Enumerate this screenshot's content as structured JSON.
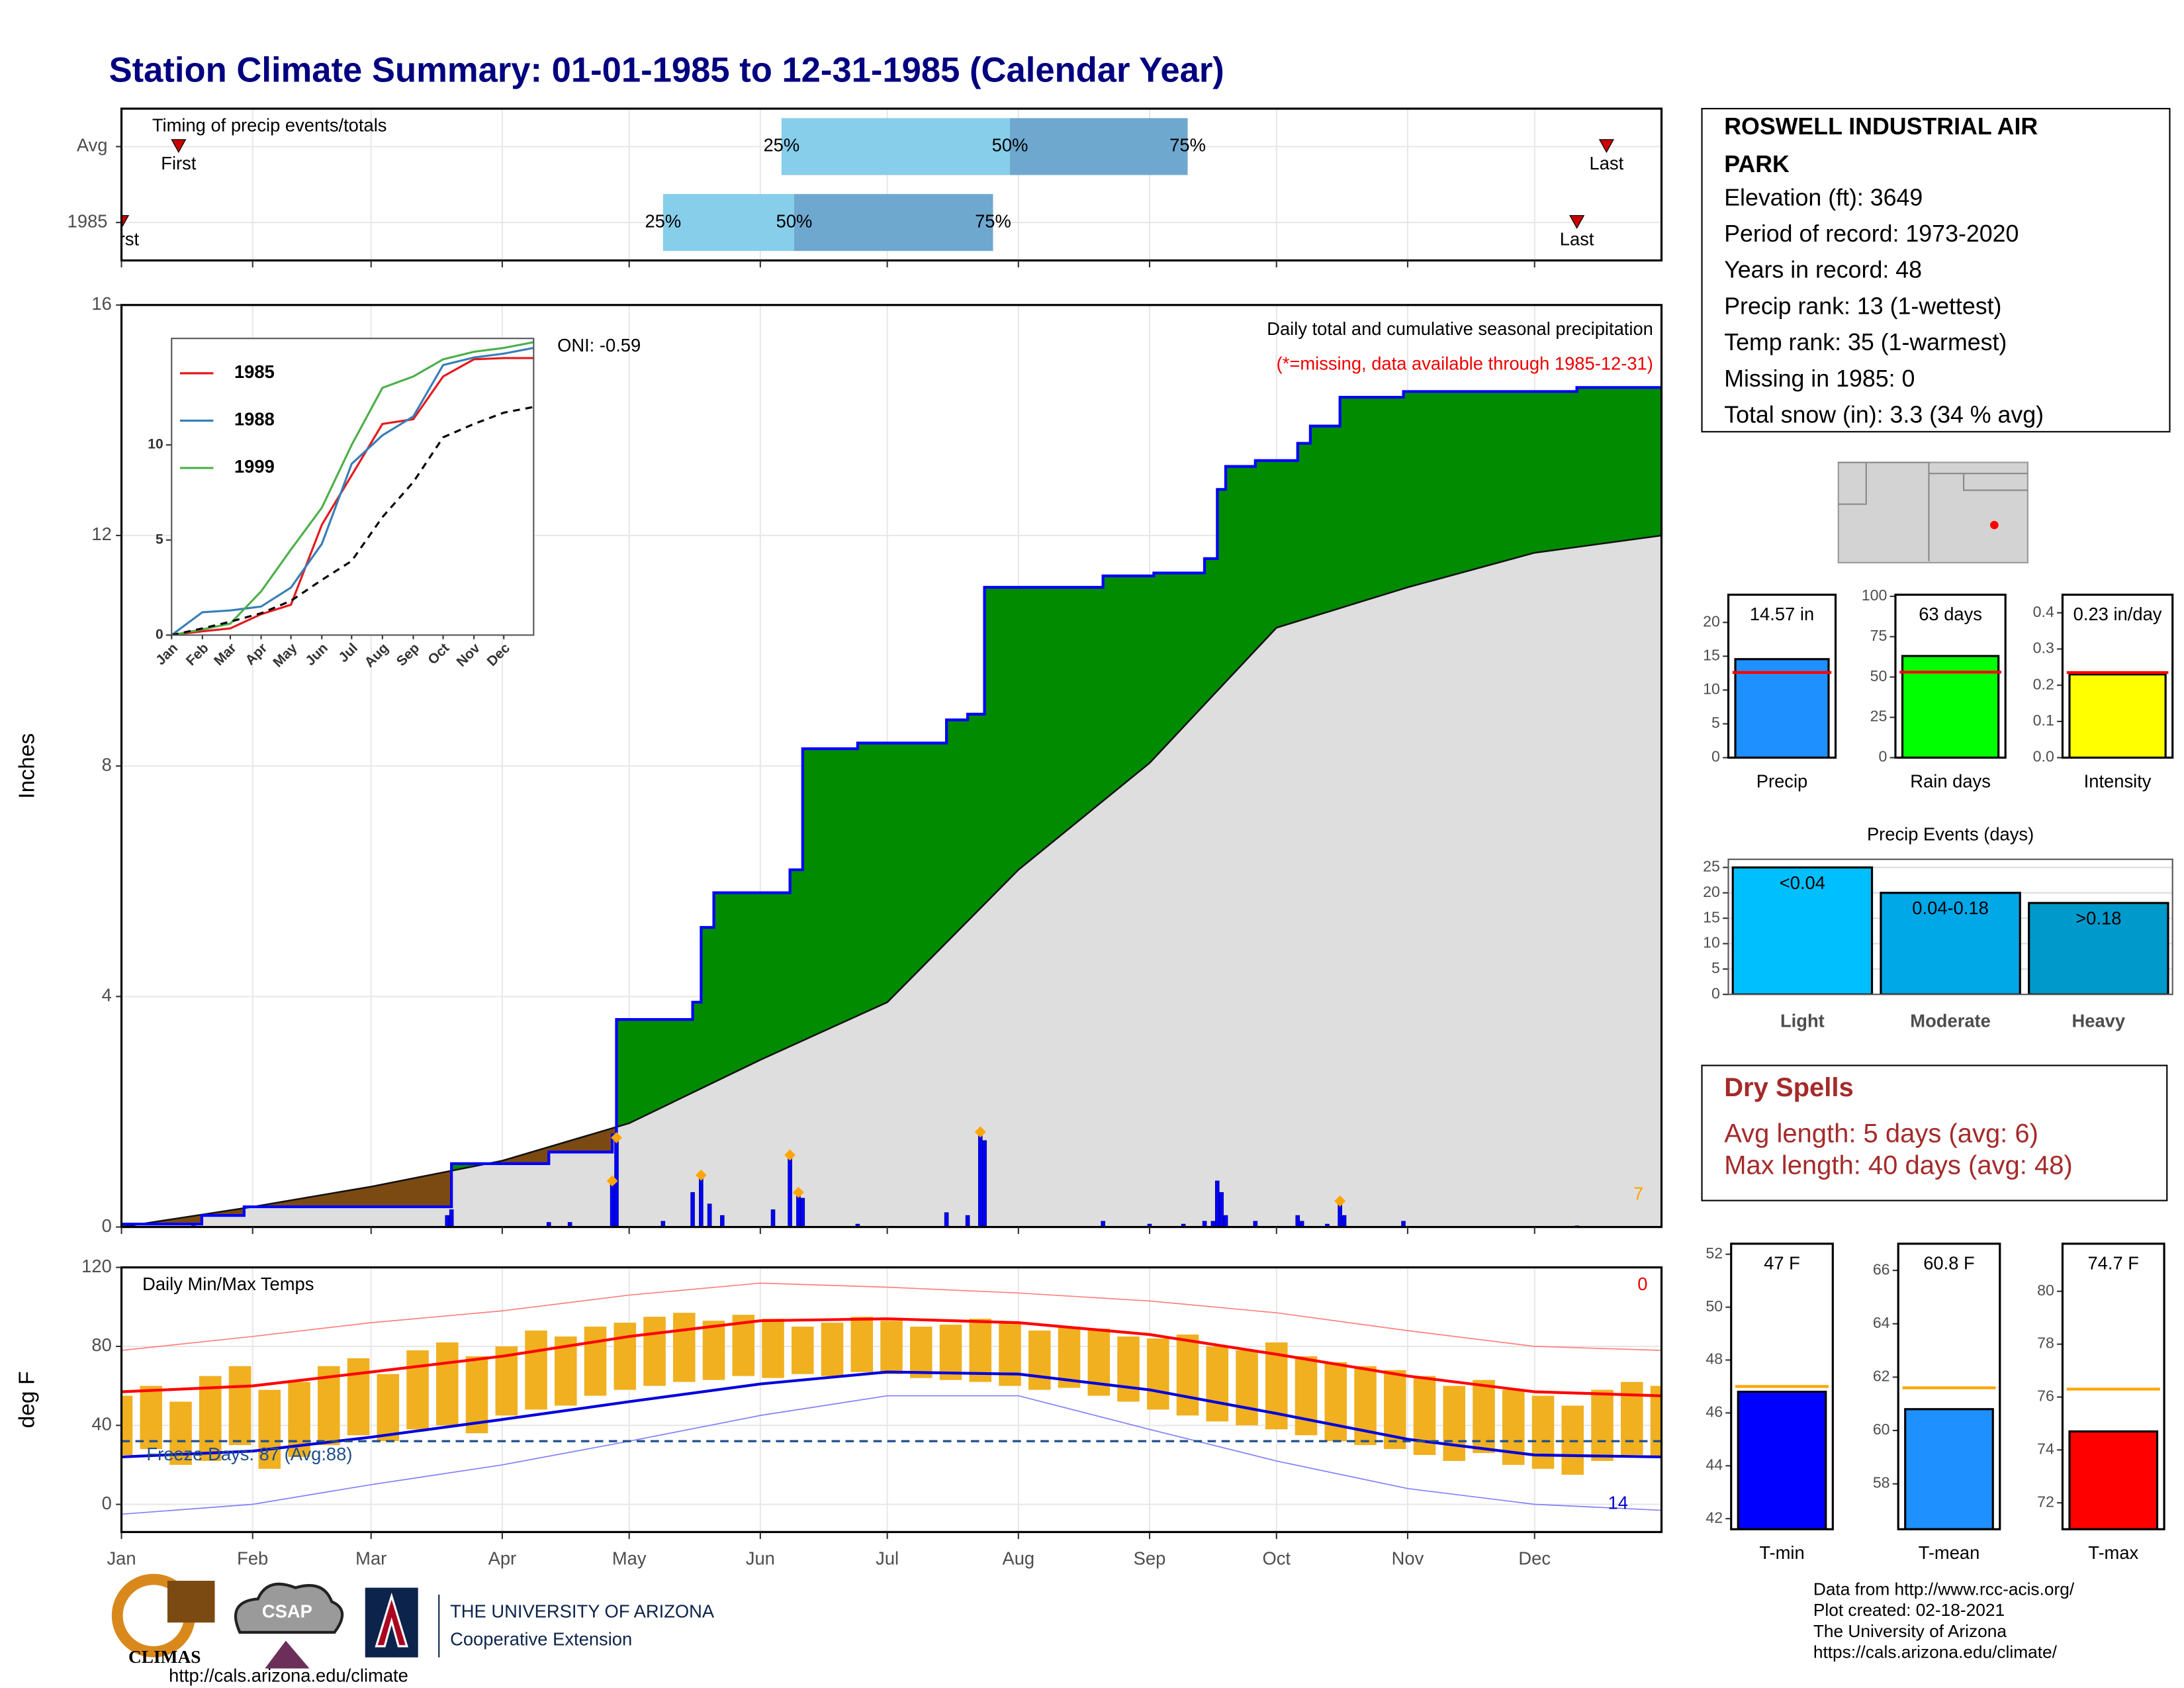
{
  "title": "Station Climate Summary: 01-01-1985 to 12-31-1985 (Calendar Year)",
  "station": {
    "name": [
      "ROSWELL INDUSTRIAL AIR",
      "PARK"
    ],
    "lines": [
      "Elevation (ft): 3649",
      "Period of record: 1973-2020",
      "Years in record: 48",
      "Precip rank: 13 (1-wettest)",
      "Temp rank: 35 (1-warmest)",
      "Missing in 1985: 0",
      "Total snow (in): 3.3 (34 % avg)"
    ]
  },
  "dry_spells": {
    "title": "Dry Spells",
    "lines": [
      "Avg length: 5 days (avg: 6)",
      "Max length: 40 days (avg: 48)"
    ]
  },
  "footer": [
    "Data from http://www.rcc-acis.org/",
    "Plot created: 02-18-2021",
    "The University of Arizona",
    "https://cals.arizona.edu/climate/"
  ],
  "logos": {
    "climas": "CLIMAS",
    "csap": "CSAP",
    "url": "http://cals.arizona.edu/climate",
    "university": "THE UNIVERSITY OF ARIZONA",
    "extension": "Cooperative Extension"
  },
  "chart_data": [
    {
      "type": "timing",
      "title": "Timing of precip events/totals",
      "categories": [
        "Avg",
        "1985"
      ],
      "first": [
        13.5,
        0
      ],
      "p25": [
        156,
        128
      ],
      "p50": [
        210,
        159
      ],
      "p75": [
        252,
        206
      ],
      "last": [
        351,
        344
      ],
      "labels": {
        "first": "First",
        "last": "Last",
        "p25": "25%",
        "p50": "50%",
        "p75": "75%"
      },
      "colors": [
        "#87ceeb",
        "#6fa8cf"
      ],
      "marker_color": "#cc0000",
      "xlim": [
        0,
        364
      ]
    },
    {
      "type": "area",
      "title": "Daily total and cumulative seasonal precipitation",
      "subtitle": "(*=missing, data available through 1985-12-31)",
      "annotations": [
        "ONI: -0.59",
        "7"
      ],
      "ylabel": "Inches",
      "ylim": [
        0,
        16
      ],
      "yticks": [
        0,
        4,
        8,
        12,
        16
      ],
      "xlim": [
        0,
        364
      ],
      "grid": true,
      "fill_colors": [
        "#008b00",
        "#7b4a12",
        "#dedede"
      ],
      "series": [
        {
          "step": true,
          "color": "#0000ff",
          "x": [
            0,
            19,
            29,
            78,
            101,
            116,
            117,
            135,
            137,
            140,
            154,
            158,
            161,
            174,
            195,
            200,
            204,
            232,
            244,
            256,
            259,
            261,
            268,
            278,
            281,
            288,
            303,
            344,
            364
          ],
          "values": [
            0.05,
            0.2,
            0.35,
            1.1,
            1.3,
            1.6,
            3.6,
            3.9,
            5.2,
            5.8,
            5.8,
            6.2,
            8.3,
            8.4,
            8.8,
            8.9,
            11.1,
            11.3,
            11.35,
            11.6,
            12.8,
            13.2,
            13.3,
            13.6,
            13.9,
            14.4,
            14.5,
            14.57,
            14.57
          ]
        },
        {
          "step": false,
          "color": "#111111",
          "x": [
            0,
            31,
            59,
            90,
            120,
            151,
            181,
            212,
            243,
            273,
            304,
            334,
            364
          ],
          "values": [
            0,
            0.35,
            0.7,
            1.15,
            1.8,
            2.9,
            3.9,
            6.2,
            8.05,
            10.4,
            11.1,
            11.7,
            12.0
          ]
        }
      ],
      "daily": {
        "color": "#0000ff",
        "x": [
          17,
          77,
          78,
          101,
          106,
          116,
          117,
          128,
          135,
          137,
          139,
          142,
          154,
          158,
          160,
          161,
          174,
          195,
          200,
          203,
          204,
          232,
          243,
          251,
          256,
          258,
          259,
          260,
          261,
          268,
          278,
          279,
          285,
          288,
          289,
          303,
          344
        ],
        "values": [
          0.02,
          0.2,
          0.3,
          0.08,
          0.08,
          0.8,
          1.5,
          0.1,
          0.6,
          0.9,
          0.4,
          0.2,
          0.3,
          1.2,
          0.6,
          0.5,
          0.05,
          0.25,
          0.2,
          1.6,
          1.5,
          0.1,
          0.05,
          0.05,
          0.1,
          0.1,
          0.8,
          0.6,
          0.2,
          0.1,
          0.2,
          0.1,
          0.05,
          0.4,
          0.2,
          0.1,
          0.02
        ]
      },
      "records": {
        "color": "#ffa500",
        "x": [
          116,
          117,
          137,
          158,
          160,
          203,
          288
        ],
        "values": [
          0.8,
          1.55,
          0.9,
          1.25,
          0.6,
          1.65,
          0.45
        ]
      }
    },
    {
      "type": "line",
      "ylim": [
        0,
        15.6
      ],
      "yticks": [
        0,
        5,
        10
      ],
      "xlim": [
        0,
        364
      ],
      "xticks": [
        {
          "value": 0,
          "label": "Jan"
        },
        {
          "value": 31,
          "label": "Feb"
        },
        {
          "value": 59,
          "label": "Mar"
        },
        {
          "value": 90,
          "label": "Apr"
        },
        {
          "value": 120,
          "label": "May"
        },
        {
          "value": 151,
          "label": "Jun"
        },
        {
          "value": 181,
          "label": "Jul"
        },
        {
          "value": 212,
          "label": "Aug"
        },
        {
          "value": 243,
          "label": "Sep"
        },
        {
          "value": 273,
          "label": "Oct"
        },
        {
          "value": 304,
          "label": "Nov"
        },
        {
          "value": 334,
          "label": "Dec"
        }
      ],
      "x": [
        0,
        31,
        59,
        90,
        120,
        151,
        181,
        212,
        243,
        273,
        304,
        334,
        364
      ],
      "series": [
        {
          "name": "1985",
          "color": "#e41a1c",
          "values": [
            0,
            0.2,
            0.35,
            1.1,
            1.6,
            5.8,
            8.4,
            11.1,
            11.35,
            13.6,
            14.5,
            14.57,
            14.57
          ]
        },
        {
          "name": "1988",
          "color": "#377eb8",
          "values": [
            0,
            1.2,
            1.3,
            1.5,
            2.5,
            4.8,
            9,
            10.5,
            11.5,
            14.2,
            14.6,
            14.8,
            15.1
          ]
        },
        {
          "name": "1999",
          "color": "#4daf4a",
          "values": [
            0,
            0.3,
            0.6,
            2.3,
            4.5,
            6.7,
            10,
            13,
            13.6,
            14.5,
            14.9,
            15.1,
            15.4
          ]
        },
        {
          "dash": true,
          "color": "#000000",
          "values": [
            0,
            0.35,
            0.7,
            1.15,
            1.8,
            2.9,
            3.9,
            6.2,
            8.05,
            10.4,
            11.1,
            11.7,
            12.0
          ]
        }
      ]
    },
    {
      "type": "temp",
      "title": "Daily Min/Max Temps",
      "ylabel": "deg F",
      "annotations": [
        "Freeze Days: 87 (Avg:88)",
        "0",
        "14"
      ],
      "ylim": [
        -14,
        120
      ],
      "yticks": [
        0,
        40,
        80,
        120
      ],
      "xlim": [
        0,
        364
      ],
      "grid": true,
      "threshold": 32,
      "threshold_color": "#1f4e8c",
      "xticks": [
        {
          "value": 0,
          "label": "Jan"
        },
        {
          "value": 31,
          "label": "Feb"
        },
        {
          "value": 59,
          "label": "Mar"
        },
        {
          "value": 90,
          "label": "Apr"
        },
        {
          "value": 120,
          "label": "May"
        },
        {
          "value": 151,
          "label": "Jun"
        },
        {
          "value": 181,
          "label": "Jul"
        },
        {
          "value": 212,
          "label": "Aug"
        },
        {
          "value": 243,
          "label": "Sep"
        },
        {
          "value": 273,
          "label": "Oct"
        },
        {
          "value": 304,
          "label": "Nov"
        },
        {
          "value": 334,
          "label": "Dec"
        }
      ],
      "daily": {
        "color": "#f0b020",
        "x": [
          0,
          7,
          14,
          21,
          28,
          35,
          42,
          49,
          56,
          63,
          70,
          77,
          84,
          91,
          98,
          105,
          112,
          119,
          126,
          133,
          140,
          147,
          154,
          161,
          168,
          175,
          182,
          189,
          196,
          203,
          210,
          217,
          224,
          231,
          238,
          245,
          252,
          259,
          266,
          273,
          280,
          287,
          294,
          301,
          308,
          315,
          322,
          329,
          336,
          343,
          350,
          357,
          364
        ],
        "max": [
          55,
          60,
          52,
          65,
          70,
          58,
          62,
          70,
          74,
          66,
          78,
          82,
          75,
          80,
          88,
          85,
          90,
          92,
          95,
          97,
          93,
          96,
          94,
          90,
          92,
          95,
          93,
          90,
          91,
          94,
          92,
          88,
          90,
          89,
          85,
          84,
          86,
          80,
          78,
          82,
          75,
          72,
          70,
          68,
          65,
          60,
          63,
          58,
          55,
          50,
          58,
          62,
          60
        ],
        "min": [
          25,
          28,
          20,
          22,
          30,
          18,
          24,
          30,
          35,
          32,
          38,
          40,
          36,
          45,
          48,
          50,
          55,
          58,
          60,
          62,
          63,
          65,
          64,
          66,
          65,
          67,
          66,
          64,
          63,
          62,
          60,
          58,
          59,
          55,
          52,
          48,
          45,
          42,
          40,
          38,
          35,
          32,
          30,
          28,
          25,
          22,
          26,
          20,
          18,
          15,
          22,
          25,
          24
        ]
      },
      "x": [
        0,
        31,
        59,
        90,
        120,
        151,
        181,
        212,
        243,
        273,
        304,
        334,
        364
      ],
      "series": [
        {
          "color": "#ff0000",
          "width": 2,
          "values": [
            57,
            60,
            67,
            75,
            85,
            93,
            94,
            92,
            86,
            76,
            65,
            57,
            55
          ]
        },
        {
          "color": "#0000dd",
          "width": 2,
          "values": [
            24,
            27,
            34,
            43,
            52,
            61,
            67,
            66,
            58,
            46,
            33,
            25,
            24
          ]
        },
        {
          "color": "#ff8080",
          "width": 0.8,
          "values": [
            78,
            85,
            92,
            98,
            106,
            112,
            110,
            107,
            103,
            97,
            88,
            80,
            78
          ]
        },
        {
          "color": "#8080ff",
          "width": 0.8,
          "values": [
            -5,
            0,
            10,
            20,
            32,
            45,
            55,
            55,
            38,
            22,
            8,
            0,
            -3
          ]
        }
      ]
    },
    {
      "type": "bar",
      "categories": [
        "Precip"
      ],
      "values": [
        14.57
      ],
      "value_labels": [
        "14.57 in"
      ],
      "color": "#1e90ff",
      "avg": 12.6,
      "avg_color": "#ff0000",
      "ylim": [
        0,
        24.1
      ],
      "yticks": [
        0,
        5,
        10,
        15,
        20
      ]
    },
    {
      "type": "bar",
      "categories": [
        "Rain days"
      ],
      "values": [
        63
      ],
      "value_labels": [
        "63 days"
      ],
      "color": "#00ff00",
      "avg": 53,
      "avg_color": "#ff0000",
      "ylim": [
        0,
        101
      ],
      "yticks": [
        0,
        25,
        50,
        75,
        100
      ]
    },
    {
      "type": "bar",
      "categories": [
        "Intensity"
      ],
      "values": [
        0.23
      ],
      "value_labels": [
        "0.23 in/day"
      ],
      "color": "#ffff00",
      "avg": 0.235,
      "avg_color": "#ff0000",
      "ylim": [
        0,
        0.45
      ],
      "yticks": [
        {
          "value": 0,
          "label": "0.0"
        },
        0.1,
        0.2,
        0.3,
        0.4
      ]
    },
    {
      "type": "bar",
      "title": "Precip Events (days)",
      "categories": [
        "Light",
        "Moderate",
        "Heavy"
      ],
      "values": [
        25,
        20,
        18
      ],
      "value_labels": [
        "<0.04",
        "0.04-0.18",
        ">0.18"
      ],
      "colors": [
        "#00bfff",
        "#00a8e8",
        "#0099cc"
      ],
      "ylim": [
        0,
        26.6
      ],
      "yticks": [
        0,
        5,
        10,
        15,
        20,
        25
      ],
      "grid": true
    },
    {
      "type": "bar",
      "categories": [
        "T-min"
      ],
      "values": [
        46.8
      ],
      "value_labels": [
        "47 F"
      ],
      "color": "#0000ff",
      "avg": 47.0,
      "avg_color": "#ffa500",
      "ylim": [
        41.6,
        52.4
      ],
      "yticks": [
        42,
        44,
        46,
        48,
        50,
        52
      ]
    },
    {
      "type": "bar",
      "categories": [
        "T-mean"
      ],
      "values": [
        60.8
      ],
      "value_labels": [
        "60.8 F"
      ],
      "color": "#1e90ff",
      "avg": 61.6,
      "avg_color": "#ffa500",
      "ylim": [
        56.3,
        67
      ],
      "yticks": [
        58,
        60,
        62,
        64,
        66
      ]
    },
    {
      "type": "bar",
      "categories": [
        "T-max"
      ],
      "values": [
        74.7
      ],
      "value_labels": [
        "74.7 F"
      ],
      "color": "#ff0000",
      "avg": 76.3,
      "avg_color": "#ffa500",
      "ylim": [
        71,
        81.8
      ],
      "yticks": [
        72,
        74,
        76,
        78,
        80
      ]
    }
  ]
}
